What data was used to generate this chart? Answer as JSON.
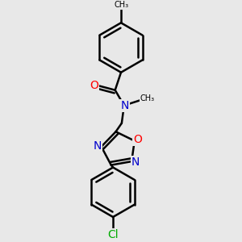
{
  "bg_color": "#e8e8e8",
  "bond_color": "#000000",
  "bond_width": 1.8,
  "atom_colors": {
    "O": "#ff0000",
    "N": "#0000cc",
    "Cl": "#00aa00",
    "C": "#000000"
  },
  "font_size": 9,
  "fig_size": [
    3.0,
    3.0
  ],
  "dpi": 100
}
